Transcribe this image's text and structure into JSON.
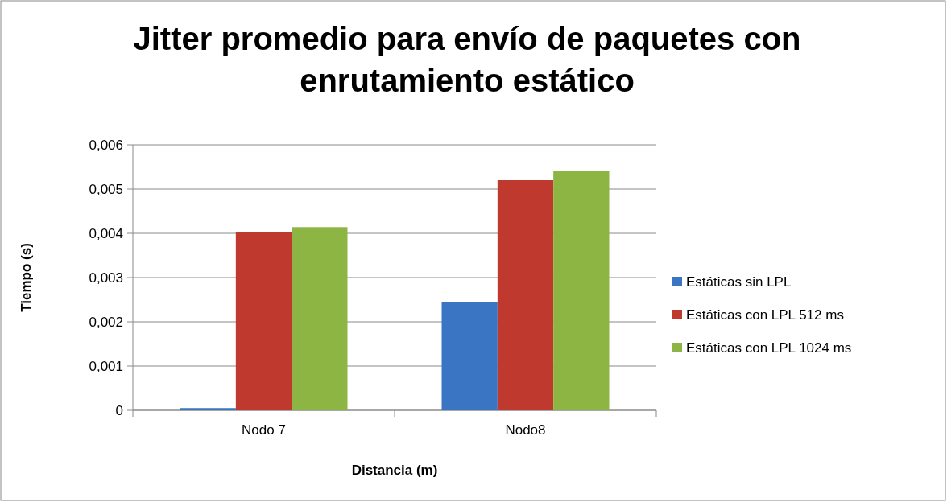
{
  "chart_data": {
    "type": "bar",
    "title": "Jitter promedio para envío de paquetes con enrutamiento estático",
    "xlabel": "Distancia (m)",
    "ylabel": "Tiempo (s)",
    "categories": [
      "Nodo 7",
      "Nodo8"
    ],
    "series": [
      {
        "name": "Estáticas sin LPL",
        "color": "#3a75c4",
        "values": [
          5e-05,
          0.00244
        ]
      },
      {
        "name": "Estáticas con LPL 512 ms",
        "color": "#c0392f",
        "values": [
          0.00403,
          0.0052
        ]
      },
      {
        "name": "Estáticas con LPL 1024 ms",
        "color": "#8db543",
        "values": [
          0.00414,
          0.0054
        ]
      }
    ],
    "ylim": [
      0,
      0.006
    ],
    "yticks": [
      0,
      {
        "value": 0.001,
        "label": "0,001"
      },
      {
        "value": 0.002,
        "label": "0,002"
      },
      {
        "value": 0.003,
        "label": "0,003"
      },
      {
        "value": 0.004,
        "label": "0,004"
      },
      {
        "value": 0.005,
        "label": "0,005"
      },
      {
        "value": 0.006,
        "label": "0,006"
      }
    ],
    "grid": "y",
    "legend": "right"
  }
}
